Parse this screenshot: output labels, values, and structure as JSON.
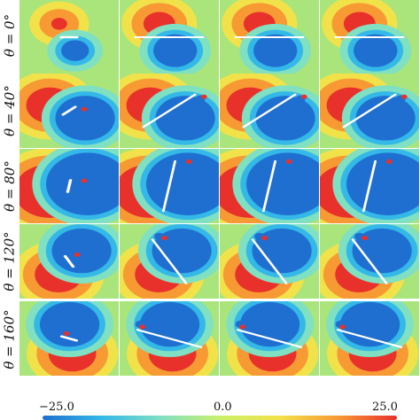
{
  "rows": [
    {
      "label": "θ = 0°",
      "angle": 0
    },
    {
      "label": "θ = 40°",
      "angle": 40
    },
    {
      "label": "θ = 80°",
      "angle": 80
    },
    {
      "label": "θ = 120°",
      "angle": 120
    },
    {
      "label": "θ = 160°",
      "angle": 160
    }
  ],
  "columns": 4,
  "colorbar": {
    "min_label": "−25.0",
    "mid_label": "0.0",
    "max_label": "25.0",
    "colors": [
      "#1f6fd1",
      "#34b8e8",
      "#7fe0c2",
      "#c9f06a",
      "#f2e24a",
      "#f79a34",
      "#e8312a"
    ]
  }
}
